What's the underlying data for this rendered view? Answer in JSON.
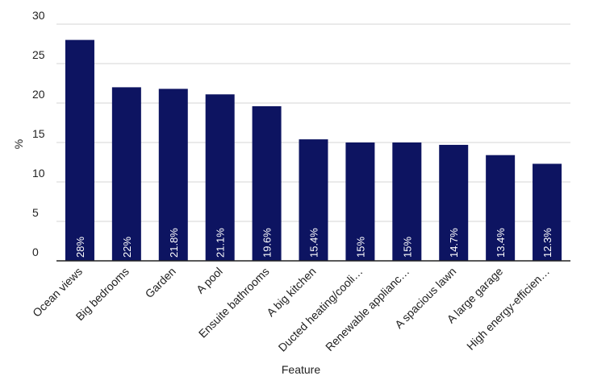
{
  "chart_data": {
    "type": "bar",
    "categories": [
      "Ocean views",
      "Big bedrooms",
      "Garden",
      "A pool",
      "Ensuite bathrooms",
      "A big kitchen",
      "Ducted heating/cooli…",
      "Renewable applianc…",
      "A spacious lawn",
      "A large garage",
      "High energy-efficien…"
    ],
    "values": [
      28,
      22,
      21.8,
      21.1,
      19.6,
      15.4,
      15,
      15,
      14.7,
      13.4,
      12.3
    ],
    "data_labels": [
      "28%",
      "22%",
      "21.8%",
      "21.1%",
      "19.6%",
      "15.4%",
      "15%",
      "15%",
      "14.7%",
      "13.4%",
      "12.3%"
    ],
    "xlabel": "Feature",
    "ylabel": "%",
    "ylim": [
      0,
      30
    ],
    "yticks": [
      0,
      5,
      10,
      15,
      20,
      25,
      30
    ],
    "grid": true,
    "bar_color": "#0d1461"
  }
}
